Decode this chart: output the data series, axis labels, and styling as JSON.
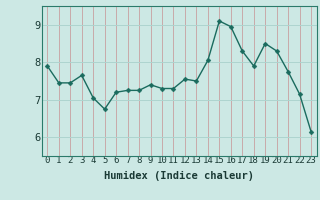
{
  "x": [
    0,
    1,
    2,
    3,
    4,
    5,
    6,
    7,
    8,
    9,
    10,
    11,
    12,
    13,
    14,
    15,
    16,
    17,
    18,
    19,
    20,
    21,
    22,
    23
  ],
  "y": [
    7.9,
    7.45,
    7.45,
    7.65,
    7.05,
    6.75,
    7.2,
    7.25,
    7.25,
    7.4,
    7.3,
    7.3,
    7.55,
    7.5,
    8.05,
    9.1,
    8.95,
    8.3,
    7.9,
    8.5,
    8.3,
    7.75,
    7.15,
    6.15
  ],
  "line_color": "#1a6b5e",
  "marker_color": "#1a6b5e",
  "bg_color": "#cce8e4",
  "grid_color": "#aed4cf",
  "xlabel": "Humidex (Indice chaleur)",
  "ylim": [
    5.5,
    9.5
  ],
  "xlim": [
    -0.5,
    23.5
  ],
  "yticks": [
    6,
    7,
    8,
    9
  ],
  "xticks": [
    0,
    1,
    2,
    3,
    4,
    5,
    6,
    7,
    8,
    9,
    10,
    11,
    12,
    13,
    14,
    15,
    16,
    17,
    18,
    19,
    20,
    21,
    22,
    23
  ],
  "tick_fontsize": 6.5,
  "xlabel_fontsize": 7.5,
  "ytick_fontsize": 7.5,
  "marker_size": 2.5,
  "line_width": 1.0
}
